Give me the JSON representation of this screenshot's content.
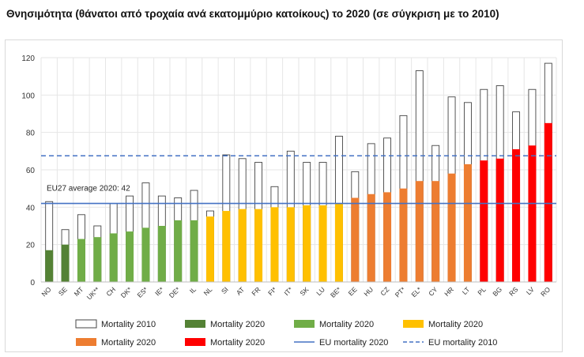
{
  "title": "Θνησιμότητα (θάνατοι από τροχαία ανά εκατομμύριο κατοίκους) το 2020 (σε σύγκριση με το 2010)",
  "chart_data": {
    "type": "bar",
    "title": "Θνησιμότητα (θάνατοι από τροχαία ανά εκατομμύριο κατοίκους) το 2020 (σε σύγκριση με το 2010)",
    "xlabel": "",
    "ylabel": "",
    "ylim": [
      0,
      120
    ],
    "yticks": [
      0,
      20,
      40,
      60,
      80,
      100,
      120
    ],
    "grid": true,
    "categories": [
      "NO",
      "SE",
      "MT",
      "UK**",
      "CH",
      "DK*",
      "ES*",
      "IE*",
      "DE*",
      "IL",
      "NL",
      "SI",
      "AT",
      "FR",
      "FI*",
      "IT*",
      "SK",
      "LU",
      "BE*",
      "EE",
      "HU",
      "CZ",
      "PT*",
      "EL*",
      "CY",
      "HR",
      "LT",
      "PL",
      "BG",
      "RS",
      "LV",
      "RO"
    ],
    "series": [
      {
        "name": "Mortality 2010",
        "style": "outline",
        "color": "#444444",
        "values": [
          43,
          28,
          36,
          30,
          42,
          46,
          53,
          46,
          45,
          49,
          38,
          68,
          66,
          64,
          51,
          70,
          64,
          64,
          78,
          59,
          74,
          77,
          89,
          113,
          73,
          99,
          96,
          103,
          105,
          91,
          103,
          117
        ]
      },
      {
        "name": "Mortality 2020",
        "style": "filled",
        "values": [
          17,
          20,
          23,
          24,
          26,
          27,
          29,
          30,
          33,
          33,
          35,
          38,
          39,
          39,
          40,
          40,
          41,
          41,
          42,
          45,
          47,
          48,
          50,
          54,
          54,
          58,
          63,
          65,
          66,
          71,
          73,
          85
        ]
      }
    ],
    "bar_colors_2020": [
      "#548235",
      "#548235",
      "#70ad47",
      "#70ad47",
      "#70ad47",
      "#70ad47",
      "#70ad47",
      "#70ad47",
      "#70ad47",
      "#70ad47",
      "#ffc000",
      "#ffc000",
      "#ffc000",
      "#ffc000",
      "#ffc000",
      "#ffc000",
      "#ffc000",
      "#ffc000",
      "#ffc000",
      "#ed7d31",
      "#ed7d31",
      "#ed7d31",
      "#ed7d31",
      "#ed7d31",
      "#ed7d31",
      "#ed7d31",
      "#ed7d31",
      "#ff0000",
      "#ff0000",
      "#ff0000",
      "#ff0000",
      "#ff0000"
    ],
    "reference_lines": [
      {
        "name": "EU mortality 2020",
        "value": 42,
        "style": "solid",
        "color": "#4472c4"
      },
      {
        "name": "EU mortality 2010",
        "value": 67.5,
        "style": "dashed",
        "color": "#4472c4"
      }
    ],
    "annotation": "EU27 average 2020: 42",
    "legend_position": "bottom",
    "legend": [
      {
        "label": "Mortality 2010",
        "kind": "outline",
        "color": "#444444"
      },
      {
        "label": "Mortality 2020",
        "kind": "box",
        "color": "#548235"
      },
      {
        "label": "Mortality 2020",
        "kind": "box",
        "color": "#70ad47"
      },
      {
        "label": "Mortality 2020",
        "kind": "box",
        "color": "#ffc000"
      },
      {
        "label": "Mortality 2020",
        "kind": "box",
        "color": "#ed7d31"
      },
      {
        "label": "Mortality 2020",
        "kind": "box",
        "color": "#ff0000"
      },
      {
        "label": "EU mortality 2020",
        "kind": "line",
        "color": "#4472c4"
      },
      {
        "label": "EU mortality 2010",
        "kind": "dash",
        "color": "#4472c4"
      }
    ]
  }
}
